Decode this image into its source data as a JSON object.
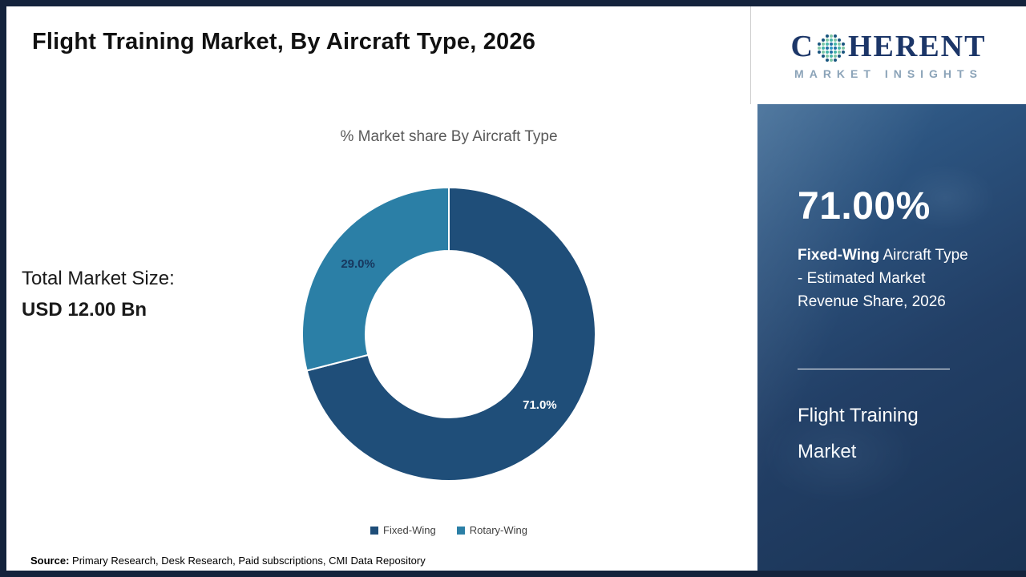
{
  "page": {
    "title": "Flight Training Market, By Aircraft Type, 2026",
    "source_label": "Source:",
    "source_text": " Primary Research, Desk Research, Paid subscriptions, CMI Data Repository",
    "border_color": "#14233c"
  },
  "totals": {
    "label": "Total Market Size:",
    "value": "USD 12.00 Bn"
  },
  "chart_data": {
    "type": "pie",
    "subtype": "donut",
    "title": "% Market share By Aircraft Type",
    "categories": [
      "Fixed-Wing",
      "Rotary-Wing"
    ],
    "values": [
      71.0,
      29.0
    ],
    "data_labels": [
      "71.0%",
      "29.0%"
    ],
    "colors": [
      "#1f4e79",
      "#2b7fa6"
    ],
    "label_colors": [
      "#ffffff",
      "#17375e"
    ],
    "start_angle_deg": 0,
    "direction": "clockwise",
    "inner_radius_ratio": 0.57,
    "legend_position": "bottom"
  },
  "sidebar": {
    "stat_value": "71.00%",
    "stat_bold": "Fixed-Wing",
    "stat_rest": " Aircraft Type - Estimated Market Revenue Share, 2026",
    "panel_title": "Flight Training Market",
    "background_colors": [
      "#3a6793",
      "#1a3354"
    ]
  },
  "logo": {
    "brand_left": "C",
    "brand_right": "HERENT",
    "brand_bottom": "MARKET INSIGHTS",
    "brand_color": "#1c3668",
    "subtitle_color": "#8ba3b8"
  }
}
